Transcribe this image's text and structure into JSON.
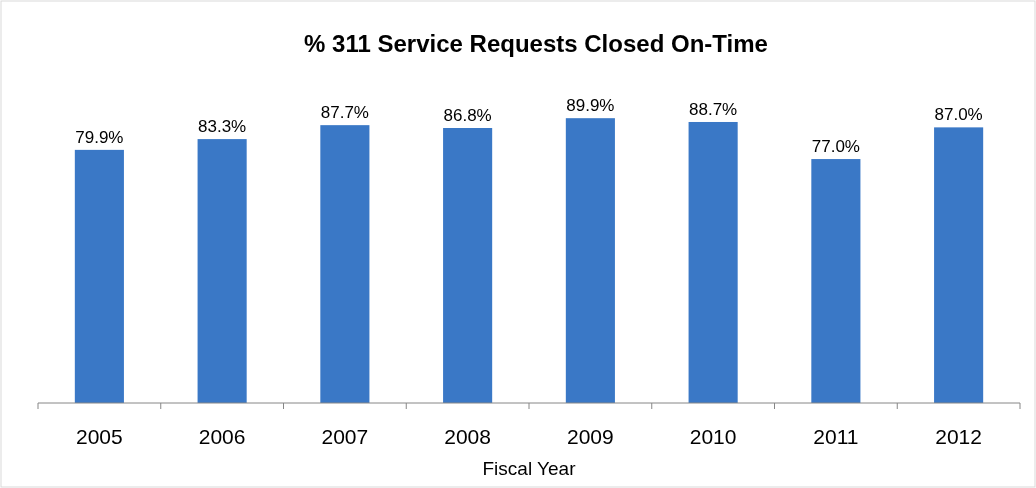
{
  "chart_data": {
    "type": "bar",
    "title": "% 311 Service Requests Closed On-Time",
    "xlabel": "Fiscal Year",
    "categories": [
      "2005",
      "2006",
      "2007",
      "2008",
      "2009",
      "2010",
      "2011",
      "2012"
    ],
    "values": [
      79.9,
      83.3,
      87.7,
      86.8,
      89.9,
      88.7,
      77.0,
      87.0
    ],
    "value_labels": [
      "79.9%",
      "83.3%",
      "87.7%",
      "86.8%",
      "89.9%",
      "88.7%",
      "77.0%",
      "87.0%"
    ],
    "color": "#3a78c6",
    "tick_labels": "x"
  }
}
